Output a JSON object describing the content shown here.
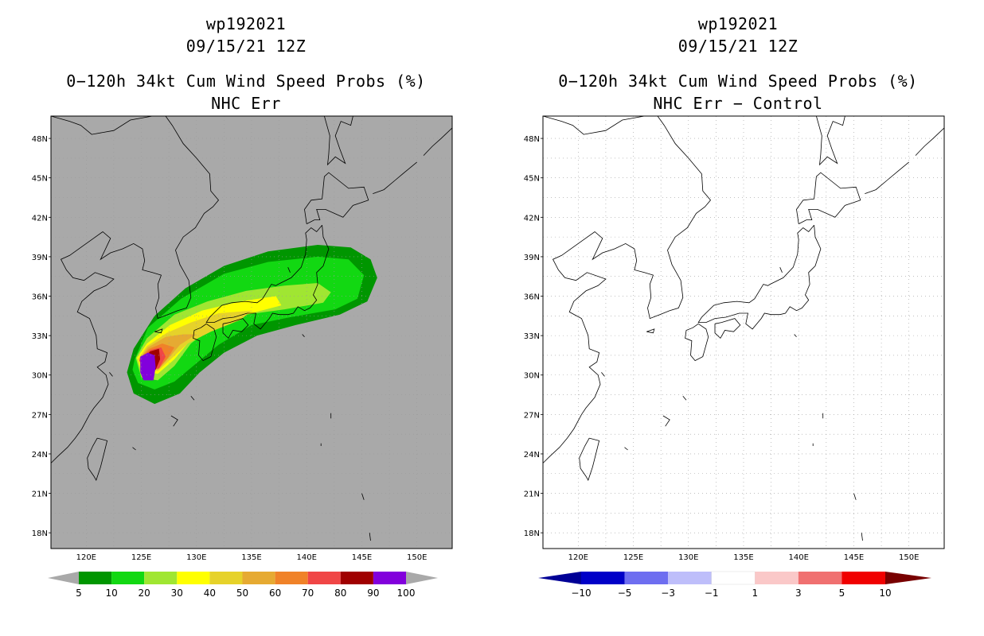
{
  "left_panel": {
    "storm_id": "wp192021",
    "datetime": "09/15/21 12Z",
    "product": "0−120h 34kt Cum Wind Speed Probs (%)",
    "subtitle": "NHC Err",
    "colorbar": {
      "labels": [
        "5",
        "10",
        "20",
        "30",
        "40",
        "50",
        "60",
        "70",
        "80",
        "90",
        "100"
      ],
      "colors": [
        "#009600",
        "#12d812",
        "#a0e632",
        "#ffff00",
        "#e6d22a",
        "#e6aa32",
        "#f08228",
        "#f04646",
        "#a00000",
        "#8200dc"
      ],
      "end_color": "#a9a9a9"
    }
  },
  "right_panel": {
    "storm_id": "wp192021",
    "datetime": "09/15/21 12Z",
    "product": "0−120h 34kt Cum Wind Speed Probs (%)",
    "subtitle": "NHC Err − Control",
    "colorbar": {
      "labels": [
        "−10",
        "−5",
        "−3",
        "−1",
        "1",
        "3",
        "5",
        "10"
      ],
      "colors": [
        "#0000c8",
        "#6e6ef0",
        "#bebefa",
        "#ffffff",
        "#fac8c8",
        "#f07070",
        "#f00000"
      ],
      "end_low_color": "#000096",
      "end_high_color": "#780000"
    }
  },
  "map": {
    "lon_labels": [
      "120E",
      "125E",
      "130E",
      "135E",
      "140E",
      "145E",
      "150E"
    ],
    "lat_labels": [
      "48N",
      "45N",
      "42N",
      "39N",
      "36N",
      "33N",
      "30N",
      "27N",
      "24N",
      "21N",
      "18N"
    ],
    "background_left": "#a9a9a9",
    "background_right": "#ffffff"
  },
  "probability_field": [
    {
      "threshold": "5",
      "color": "#009600"
    },
    {
      "threshold": "10",
      "color": "#12d812"
    },
    {
      "threshold": "20",
      "color": "#a0e632"
    },
    {
      "threshold": "30",
      "color": "#ffff00"
    },
    {
      "threshold": "40",
      "color": "#e6d22a"
    },
    {
      "threshold": "50",
      "color": "#e6aa32"
    },
    {
      "threshold": "60",
      "color": "#f08228"
    },
    {
      "threshold": "70",
      "color": "#f04646"
    },
    {
      "threshold": "80",
      "color": "#a00000"
    },
    {
      "threshold": "90",
      "color": "#8200dc"
    }
  ]
}
